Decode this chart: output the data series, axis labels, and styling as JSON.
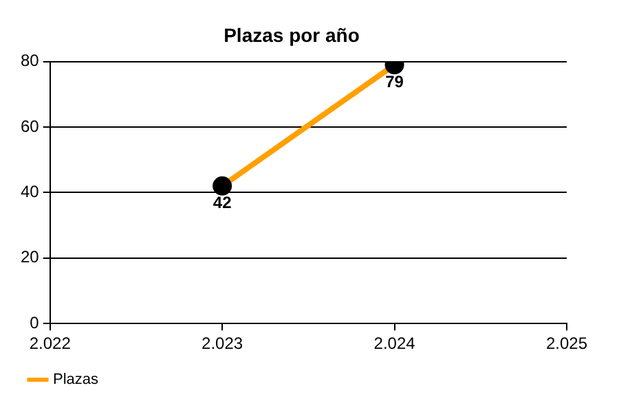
{
  "chart_data": {
    "type": "line",
    "title": "Plazas por año",
    "x": [
      2023,
      2024
    ],
    "series": [
      {
        "name": "Plazas",
        "color": "#ffa000",
        "values": [
          42,
          79
        ]
      }
    ],
    "xlim": [
      2022,
      2025
    ],
    "xticks": [
      {
        "value": 2022,
        "label": "2.022"
      },
      {
        "value": 2023,
        "label": "2.023"
      },
      {
        "value": 2024,
        "label": "2.024"
      },
      {
        "value": 2025,
        "label": "2.025"
      }
    ],
    "ylim": [
      0,
      80
    ],
    "yticks": [
      0,
      20,
      40,
      60,
      80
    ],
    "grid": "y",
    "legend": "bottom left",
    "marker": "circle",
    "line_style": "solid",
    "data_labels": true
  }
}
